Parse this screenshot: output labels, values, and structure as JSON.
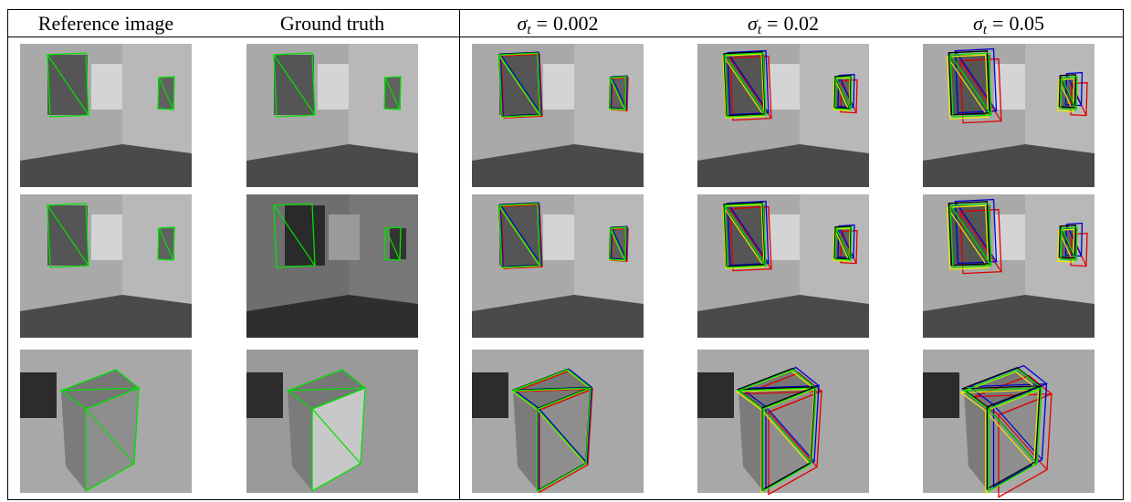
{
  "table": {
    "headers": [
      {
        "text": "Reference image"
      },
      {
        "text": "Ground truth"
      },
      {
        "symbol": "σ",
        "subscript": "t",
        "equals": "=",
        "value": "0.002"
      },
      {
        "symbol": "σ",
        "subscript": "t",
        "equals": "=",
        "value": "0.02"
      },
      {
        "symbol": "σ",
        "subscript": "t",
        "equals": "=",
        "value": "0.05"
      }
    ]
  }
}
